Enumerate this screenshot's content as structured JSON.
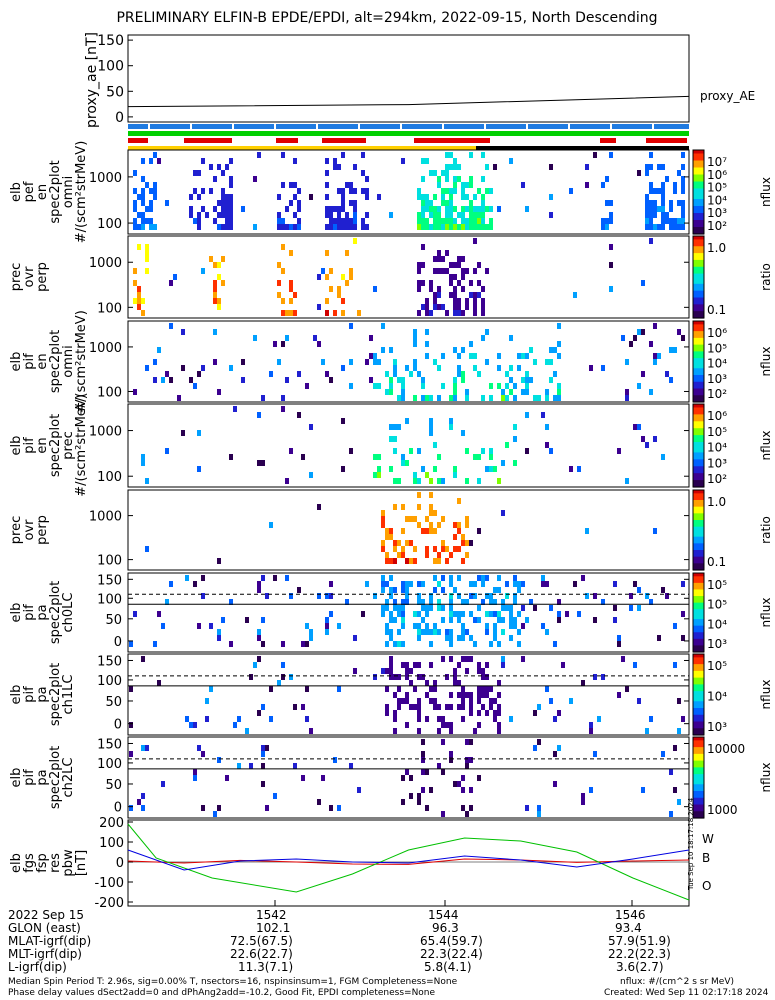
{
  "title": "PRELIMINARY ELFIN-B EPDE/EPDI, alt=294km, 2022-09-15, North Descending",
  "chart_data": [
    {
      "type": "line",
      "panel": "proxy_ae",
      "ylabel": "proxy_ae [nT]",
      "yticks": [
        "150",
        "100",
        "50",
        "0"
      ],
      "ylim": [
        -10,
        160
      ],
      "series": [
        {
          "name": "proxy_AE",
          "x": [
            0,
            0.5,
            1.0
          ],
          "values": [
            20,
            24,
            40
          ]
        }
      ]
    },
    {
      "type": "heatmap",
      "panel": "elb_pef_en_spec2plot_omni",
      "ylabel": "elb pef en spec2plot omni #/(scm²strMeV)",
      "yticks": [
        "1000",
        "100"
      ],
      "ylim_log": [
        63,
        7000
      ],
      "colorbar": {
        "label": "nflux",
        "ticks": [
          "10⁷",
          "10⁶",
          "10⁵",
          "10⁴",
          "10³",
          "10²"
        ]
      }
    },
    {
      "type": "heatmap",
      "panel": "elb_pef_prec_ovr_perp",
      "ylabel": "prec ovr perp",
      "yticks": [
        "1000",
        "100"
      ],
      "colorbar": {
        "label": "ratio",
        "ticks": [
          "1.0",
          "0.1"
        ]
      }
    },
    {
      "type": "heatmap",
      "panel": "elb_pif_en_spec2plot_omni",
      "ylabel": "elb pif en spec2plot omni #/(scm²strMeV)",
      "yticks": [
        "1000",
        "100"
      ],
      "colorbar": {
        "label": "nflux",
        "ticks": [
          "10⁶",
          "10⁵",
          "10⁴",
          "10³",
          "10²"
        ]
      }
    },
    {
      "type": "heatmap",
      "panel": "elb_pif_en_spec2plot_prec",
      "ylabel": "elb pif en spec2plot prec #/(scm²strMeV)",
      "yticks": [
        "1000",
        "100"
      ],
      "colorbar": {
        "label": "nflux",
        "ticks": [
          "10⁶",
          "10⁵",
          "10⁴",
          "10³",
          "10²"
        ]
      }
    },
    {
      "type": "heatmap",
      "panel": "elb_pif_prec_ovr_perp",
      "ylabel": "prec ovr perp",
      "yticks": [
        "1000",
        "100"
      ],
      "colorbar": {
        "label": "ratio",
        "ticks": [
          "1.0",
          "0.1"
        ]
      }
    },
    {
      "type": "heatmap",
      "panel": "elb_pif_pa_spec2plot_ch0LC",
      "ylabel": "elb pif pa spec2plot ch0LC",
      "yticks": [
        "150",
        "100",
        "50",
        "0"
      ],
      "colorbar": {
        "label": "nflux",
        "ticks": [
          "10⁵",
          "10⁵",
          "10⁴",
          "10³"
        ]
      }
    },
    {
      "type": "heatmap",
      "panel": "elb_pif_pa_spec2plot_ch1LC",
      "ylabel": "elb pif pa spec2plot ch1LC",
      "yticks": [
        "150",
        "100",
        "50",
        "0"
      ],
      "colorbar": {
        "label": "nflux",
        "ticks": [
          "10⁵",
          "10⁴",
          "10³"
        ]
      }
    },
    {
      "type": "heatmap",
      "panel": "elb_pif_pa_spec2plot_ch2LC",
      "ylabel": "elb pif pa spec2plot ch2LC",
      "yticks": [
        "150",
        "100",
        "50",
        "0"
      ],
      "colorbar": {
        "label": "nflux",
        "ticks": [
          "10000",
          "1000"
        ]
      }
    },
    {
      "type": "line",
      "panel": "elb_fgs_fsp_res_pbw",
      "ylabel": "elb fgs fsp res pbw [nT]",
      "yticks": [
        "200",
        "100",
        "0",
        "-100",
        "-200"
      ],
      "ylim": [
        -220,
        210
      ],
      "series": [
        {
          "name": "W",
          "color": "#e00000",
          "x": [
            0,
            0.1,
            0.2,
            0.3,
            0.4,
            0.5,
            0.6,
            0.7,
            0.8,
            0.9,
            1.0
          ],
          "values": [
            5,
            -5,
            8,
            0,
            -10,
            -12,
            15,
            10,
            -2,
            5,
            10
          ]
        },
        {
          "name": "B",
          "color": "#00c000",
          "x": [
            0,
            0.05,
            0.15,
            0.3,
            0.4,
            0.5,
            0.6,
            0.7,
            0.8,
            0.9,
            1.0
          ],
          "values": [
            190,
            20,
            -80,
            -150,
            -60,
            60,
            120,
            105,
            50,
            -80,
            -190
          ]
        },
        {
          "name": "O",
          "color": "#0000e0",
          "x": [
            0,
            0.1,
            0.2,
            0.3,
            0.4,
            0.5,
            0.6,
            0.7,
            0.8,
            0.9,
            1.0
          ],
          "values": [
            60,
            -40,
            5,
            15,
            0,
            -5,
            30,
            10,
            -25,
            15,
            60
          ]
        }
      ]
    }
  ],
  "time_ticks": [
    "1542",
    "1544",
    "1546"
  ],
  "footer": {
    "date": "2022 Sep 15",
    "rows": [
      {
        "label": "GLON (east)",
        "values": [
          "102.1",
          "96.3",
          "93.4"
        ]
      },
      {
        "label": "MLAT-igrf(dip)",
        "values": [
          "72.5(67.5)",
          "65.4(59.7)",
          "57.9(51.9)"
        ]
      },
      {
        "label": "MLT-igrf(dip)",
        "values": [
          "22.6(22.7)",
          "22.3(22.4)",
          "22.2(22.3)"
        ]
      },
      {
        "label": "L-igrf(dip)",
        "values": [
          "11.3(7.1)",
          "5.8(4.1)",
          "3.6(2.7)"
        ]
      }
    ],
    "note_line1": "Median Spin Period T: 2.96s, sig=0.00% T, nsectors=16, nspinsinsum=1, FGM Completeness=None",
    "note_line2": "Phase delay values dSect2add=0 and dPhAng2add=-10.2, Good Fit, EPDI completeness=None",
    "nflux_units": "nflux: #/(cm^2 s sr MeV)",
    "created": "Created: Wed Sep 11 02:17:18 2024",
    "side_stamp": "Tue Sep 10 18:17:18 2024"
  }
}
